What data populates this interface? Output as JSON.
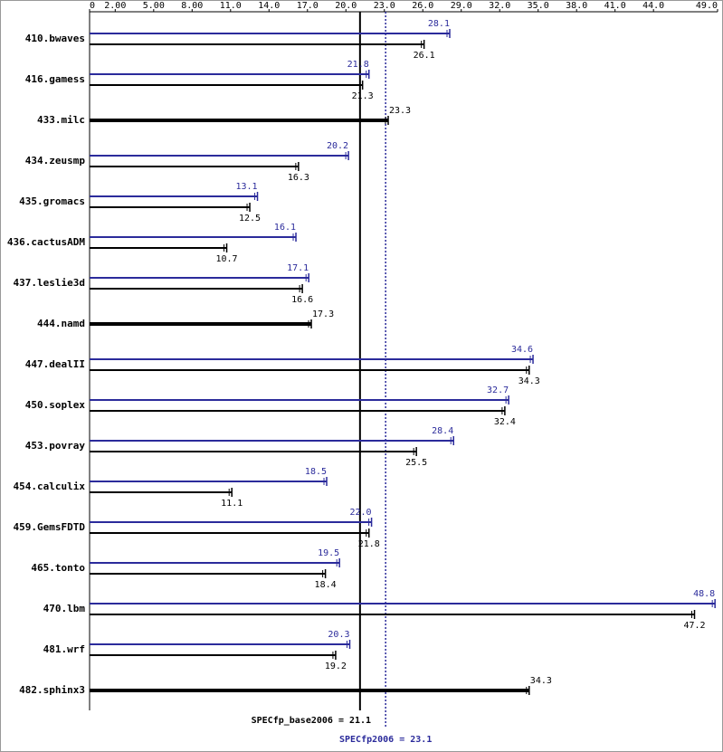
{
  "chart_data": {
    "type": "bar",
    "orientation": "horizontal",
    "categories": [
      "410.bwaves",
      "416.gamess",
      "433.milc",
      "434.zeusmp",
      "435.gromacs",
      "436.cactusADM",
      "437.leslie3d",
      "444.namd",
      "447.dealII",
      "450.soplex",
      "453.povray",
      "454.calculix",
      "459.GemsFDTD",
      "465.tonto",
      "470.lbm",
      "481.wrf",
      "482.sphinx3"
    ],
    "series": [
      {
        "color": "#2b2b9b",
        "values": [
          28.1,
          21.8,
          null,
          20.2,
          13.1,
          16.1,
          17.1,
          null,
          34.6,
          32.7,
          28.4,
          18.5,
          22.0,
          19.5,
          48.8,
          20.3,
          null
        ],
        "value_labels": [
          "28.1",
          "21.8",
          null,
          "20.2",
          "13.1",
          "16.1",
          "17.1",
          null,
          "34.6",
          "32.7",
          "28.4",
          "18.5",
          "22.0",
          "19.5",
          "48.8",
          "20.3",
          null
        ]
      },
      {
        "color": "#000000",
        "values": [
          26.1,
          21.3,
          23.3,
          16.3,
          12.5,
          10.7,
          16.6,
          17.3,
          34.3,
          32.4,
          25.5,
          11.1,
          21.8,
          18.4,
          47.2,
          19.2,
          34.3
        ],
        "value_labels": [
          "26.1",
          "21.3",
          "23.3",
          "16.3",
          "12.5",
          "10.7",
          "16.6",
          "17.3",
          "34.3",
          "32.4",
          "25.5",
          "11.1",
          "21.8",
          "18.4",
          "47.2",
          "19.2",
          "34.3"
        ]
      }
    ],
    "xlim": [
      0,
      49.0
    ],
    "xticks": [
      0,
      {
        "value": 2,
        "label": "2.00"
      },
      {
        "value": 5,
        "label": "5.00"
      },
      {
        "value": 8,
        "label": "8.00"
      },
      {
        "value": 11,
        "label": "11.0"
      },
      {
        "value": 14,
        "label": "14.0"
      },
      {
        "value": 17,
        "label": "17.0"
      },
      {
        "value": 20,
        "label": "20.0"
      },
      {
        "value": 23,
        "label": "23.0"
      },
      {
        "value": 26,
        "label": "26.0"
      },
      {
        "value": 29,
        "label": "29.0"
      },
      {
        "value": 32,
        "label": "32.0"
      },
      {
        "value": 35,
        "label": "35.0"
      },
      {
        "value": 38,
        "label": "38.0"
      },
      {
        "value": 41,
        "label": "41.0"
      },
      {
        "value": 44,
        "label": "44.0"
      },
      {
        "value": 49,
        "label": "49.0"
      }
    ],
    "reference_lines": [
      {
        "label": "SPECfp_base2006 = 21.1",
        "value": 21.1,
        "color": "#000000",
        "dashed": false
      },
      {
        "label": "SPECfp2006 = 23.1",
        "value": 23.1,
        "color": "#2b2b9b",
        "dashed": true
      }
    ]
  }
}
